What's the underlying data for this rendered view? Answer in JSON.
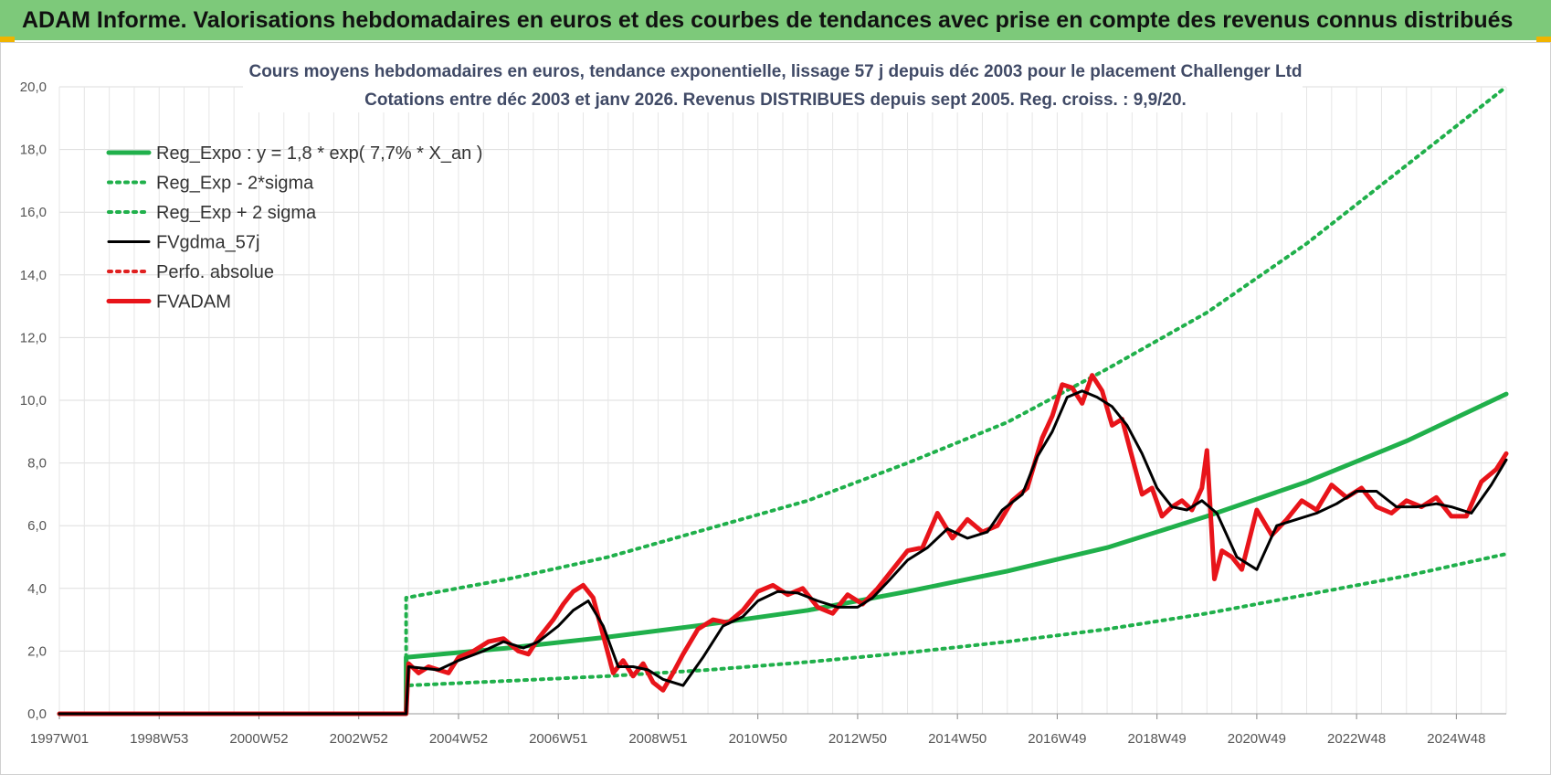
{
  "header": {
    "title": "ADAM Informe. Valorisations hebdomadaires en euros et des courbes de tendances avec prise en compte des revenus connus distribués"
  },
  "chart_data": {
    "type": "line",
    "title_line1": "Cours moyens hebdomadaires en euros, tendance exponentielle, lissage 57 j depuis déc 2003 pour le placement Challenger Ltd",
    "title_line2": "Cotations entre déc 2003 et janv 2026.  Revenus DISTRIBUES depuis sept 2005.  Reg. croiss. : 9,9/20.",
    "xlabel": "",
    "ylabel": "",
    "xlim": [
      1997.0,
      2026.0
    ],
    "ylim": [
      0,
      20
    ],
    "y_ticks": [
      0,
      2,
      4,
      6,
      8,
      10,
      12,
      14,
      16,
      18,
      20
    ],
    "y_tick_labels": [
      "0,0",
      "2,0",
      "4,0",
      "6,0",
      "8,0",
      "10,0",
      "12,0",
      "14,0",
      "16,0",
      "18,0",
      "20,0"
    ],
    "x_ticks": [
      1997.0,
      1999.0,
      2001.0,
      2003.0,
      2005.0,
      2007.0,
      2009.0,
      2011.0,
      2013.0,
      2015.0,
      2017.0,
      2019.0,
      2021.0,
      2023.0,
      2025.0
    ],
    "x_tick_labels": [
      "1997W01",
      "1998W53",
      "2000W52",
      "2002W52",
      "2004W52",
      "2006W51",
      "2008W51",
      "2010W50",
      "2012W50",
      "2014W50",
      "2016W49",
      "2018W49",
      "2020W49",
      "2022W48",
      "2024W48"
    ],
    "grid": true,
    "legend_position": "top-left",
    "series": [
      {
        "name": "Reg_Expo : y = 1,8 * exp( 7,7% *  X_an )",
        "color": "#20b04b",
        "style": "solid-thick",
        "x": [
          1997.0,
          2003.95,
          2003.95,
          2006.0,
          2008.0,
          2010.0,
          2012.0,
          2014.0,
          2016.0,
          2018.0,
          2020.0,
          2022.0,
          2024.0,
          2026.0
        ],
        "y": [
          0,
          0,
          1.8,
          2.1,
          2.45,
          2.85,
          3.3,
          3.9,
          4.55,
          5.3,
          6.3,
          7.4,
          8.7,
          10.2
        ]
      },
      {
        "name": "Reg_Exp - 2*sigma",
        "color": "#20b04b",
        "style": "dotted",
        "x": [
          1997.0,
          2003.95,
          2003.95,
          2006.0,
          2008.0,
          2010.0,
          2012.0,
          2014.0,
          2016.0,
          2018.0,
          2020.0,
          2022.0,
          2024.0,
          2026.0
        ],
        "y": [
          0,
          0,
          0.9,
          1.05,
          1.2,
          1.4,
          1.65,
          1.95,
          2.3,
          2.7,
          3.2,
          3.8,
          4.4,
          5.1
        ]
      },
      {
        "name": "Reg_Exp + 2 sigma",
        "color": "#20b04b",
        "style": "dotted",
        "x": [
          1997.0,
          2003.95,
          2003.95,
          2006.0,
          2008.0,
          2010.0,
          2012.0,
          2014.0,
          2016.0,
          2018.0,
          2020.0,
          2022.0,
          2024.0,
          2026.0
        ],
        "y": [
          0,
          0,
          3.7,
          4.3,
          5.0,
          5.9,
          6.8,
          8.0,
          9.3,
          11.0,
          12.8,
          15.0,
          17.5,
          20.0
        ]
      },
      {
        "name": "FVgdma_57j",
        "color": "#000000",
        "style": "solid",
        "x": [
          1997.0,
          2003.95,
          2004.0,
          2004.3,
          2004.6,
          2005.0,
          2005.5,
          2005.9,
          2006.3,
          2006.6,
          2007.0,
          2007.3,
          2007.6,
          2007.9,
          2008.2,
          2008.5,
          2008.8,
          2009.1,
          2009.5,
          2009.9,
          2010.3,
          2010.7,
          2011.0,
          2011.4,
          2011.8,
          2012.2,
          2012.6,
          2013.0,
          2013.3,
          2013.6,
          2014.0,
          2014.4,
          2014.8,
          2015.2,
          2015.6,
          2015.9,
          2016.3,
          2016.6,
          2016.9,
          2017.2,
          2017.5,
          2017.8,
          2018.1,
          2018.4,
          2018.7,
          2019.0,
          2019.3,
          2019.6,
          2019.9,
          2020.2,
          2020.6,
          2021.0,
          2021.4,
          2021.8,
          2022.2,
          2022.6,
          2023.0,
          2023.4,
          2023.8,
          2024.2,
          2024.6,
          2024.9,
          2025.3,
          2025.7,
          2026.0
        ],
        "y": [
          0,
          0,
          1.5,
          1.45,
          1.4,
          1.7,
          2.0,
          2.3,
          2.1,
          2.3,
          2.8,
          3.3,
          3.6,
          2.8,
          1.5,
          1.5,
          1.4,
          1.1,
          0.9,
          1.8,
          2.8,
          3.1,
          3.6,
          3.9,
          3.85,
          3.6,
          3.4,
          3.4,
          3.7,
          4.2,
          4.9,
          5.3,
          5.9,
          5.6,
          5.8,
          6.5,
          7.0,
          8.2,
          9.0,
          10.1,
          10.3,
          10.1,
          9.8,
          9.2,
          8.3,
          7.2,
          6.6,
          6.5,
          6.8,
          6.4,
          5.0,
          4.6,
          6.0,
          6.2,
          6.4,
          6.7,
          7.1,
          7.1,
          6.6,
          6.6,
          6.7,
          6.6,
          6.4,
          7.3,
          8.1
        ]
      },
      {
        "name": "Perfo. absolue",
        "color": "#e02020",
        "style": "dotted",
        "x": [],
        "y": []
      },
      {
        "name": "FVADAM",
        "color": "#e8141a",
        "style": "solid-thick",
        "x": [
          1997.0,
          2003.95,
          2004.0,
          2004.2,
          2004.4,
          2004.6,
          2004.8,
          2005.0,
          2005.3,
          2005.6,
          2005.9,
          2006.2,
          2006.4,
          2006.6,
          2006.9,
          2007.1,
          2007.3,
          2007.5,
          2007.7,
          2007.9,
          2008.1,
          2008.3,
          2008.5,
          2008.7,
          2008.9,
          2009.1,
          2009.3,
          2009.5,
          2009.8,
          2010.1,
          2010.4,
          2010.7,
          2011.0,
          2011.3,
          2011.6,
          2011.9,
          2012.2,
          2012.5,
          2012.8,
          2013.1,
          2013.4,
          2013.7,
          2014.0,
          2014.3,
          2014.6,
          2014.9,
          2015.2,
          2015.5,
          2015.8,
          2016.1,
          2016.4,
          2016.7,
          2016.9,
          2017.1,
          2017.3,
          2017.5,
          2017.7,
          2017.9,
          2018.1,
          2018.3,
          2018.5,
          2018.7,
          2018.9,
          2019.1,
          2019.3,
          2019.5,
          2019.7,
          2019.9,
          2020.0,
          2020.15,
          2020.3,
          2020.5,
          2020.7,
          2021.0,
          2021.3,
          2021.6,
          2021.9,
          2022.2,
          2022.5,
          2022.8,
          2023.1,
          2023.4,
          2023.7,
          2024.0,
          2024.3,
          2024.6,
          2024.9,
          2025.2,
          2025.5,
          2025.8,
          2026.0
        ],
        "y": [
          0,
          0,
          1.6,
          1.3,
          1.5,
          1.4,
          1.3,
          1.8,
          2.0,
          2.3,
          2.4,
          2.0,
          1.9,
          2.4,
          3.0,
          3.5,
          3.9,
          4.1,
          3.7,
          2.5,
          1.3,
          1.7,
          1.2,
          1.6,
          1.0,
          0.75,
          1.3,
          1.9,
          2.7,
          3.0,
          2.9,
          3.3,
          3.9,
          4.1,
          3.8,
          4.0,
          3.4,
          3.2,
          3.8,
          3.5,
          4.0,
          4.6,
          5.2,
          5.3,
          6.4,
          5.6,
          6.2,
          5.8,
          6.0,
          6.8,
          7.2,
          8.8,
          9.5,
          10.5,
          10.4,
          9.9,
          10.8,
          10.3,
          9.2,
          9.4,
          8.2,
          7.0,
          7.2,
          6.3,
          6.6,
          6.8,
          6.5,
          7.2,
          8.4,
          4.3,
          5.2,
          5.0,
          4.6,
          6.5,
          5.7,
          6.2,
          6.8,
          6.5,
          7.3,
          6.9,
          7.2,
          6.6,
          6.4,
          6.8,
          6.6,
          6.9,
          6.3,
          6.3,
          7.4,
          7.8,
          8.3
        ]
      }
    ]
  }
}
